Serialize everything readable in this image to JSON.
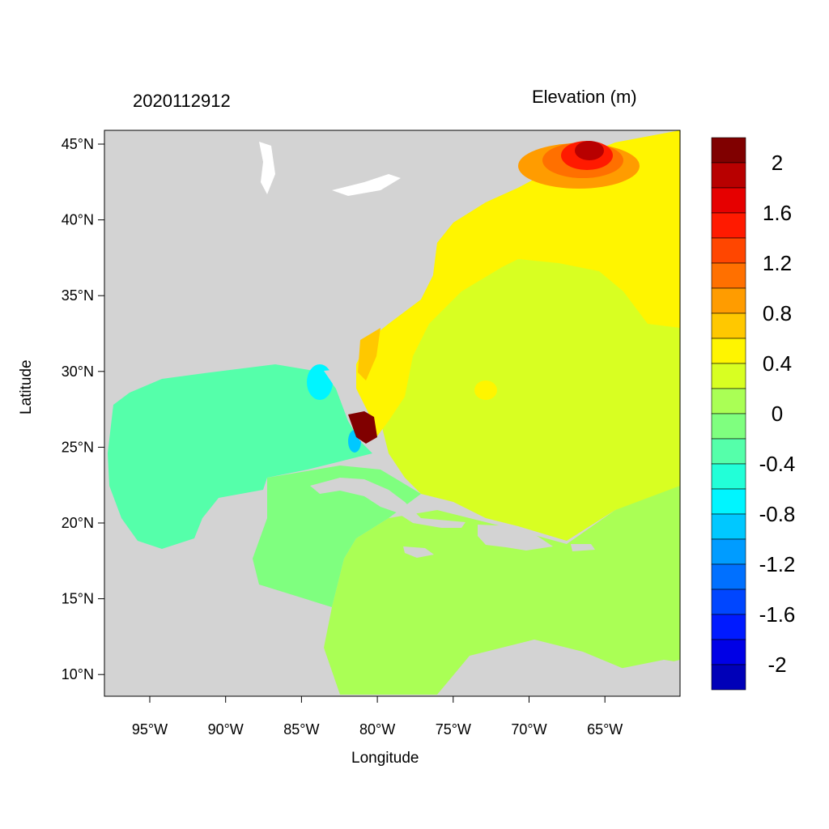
{
  "header": {
    "date": "2020112912",
    "variable_title": "Elevation (m)"
  },
  "axes": {
    "xlabel": "Longitude",
    "ylabel": "Latitude",
    "x_ticks": [
      "95°W",
      "90°W",
      "85°W",
      "80°W",
      "75°W",
      "70°W",
      "65°W"
    ],
    "y_ticks": [
      "45°N",
      "40°N",
      "35°N",
      "30°N",
      "25°N",
      "20°N",
      "15°N",
      "10°N"
    ]
  },
  "colorbar": {
    "labels": [
      "2",
      "1.6",
      "1.2",
      "0.8",
      "0.4",
      "0",
      "-0.4",
      "-0.8",
      "-1.2",
      "-1.6",
      "-2"
    ],
    "colors": [
      "#800000",
      "#b80000",
      "#e60000",
      "#ff1a00",
      "#ff4600",
      "#ff7000",
      "#ff9c00",
      "#ffc800",
      "#fff500",
      "#d8ff22",
      "#aaff55",
      "#7fff7f",
      "#55ffaa",
      "#22ffd8",
      "#00f5ff",
      "#00c8ff",
      "#009cff",
      "#0070ff",
      "#0046ff",
      "#001aff",
      "#0000e6",
      "#0000b8"
    ]
  },
  "map_colors": {
    "land": "#d3d3d3"
  }
}
